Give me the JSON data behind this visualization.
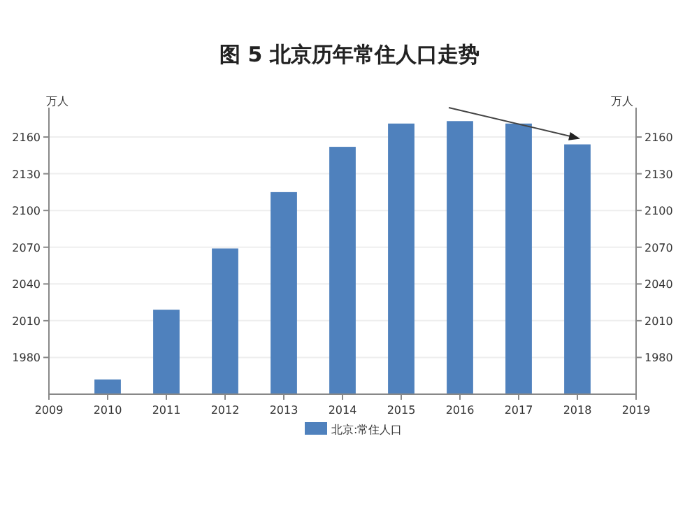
{
  "chart_data": {
    "type": "bar",
    "title": "图 5    北京历年常住人口走势",
    "ylabel": "万人",
    "y2label": "万人",
    "x": [
      2010,
      2011,
      2012,
      2013,
      2014,
      2015,
      2016,
      2017,
      2018
    ],
    "series": [
      {
        "name": "北京:常住人口",
        "color": "#4f81bd",
        "values": [
          1962,
          2019,
          2069,
          2115,
          2152,
          2171,
          2173,
          2171,
          2154
        ]
      }
    ],
    "xlim": [
      2009,
      2019
    ],
    "xticks": [
      2009,
      2010,
      2011,
      2012,
      2013,
      2014,
      2015,
      2016,
      2017,
      2018,
      2019
    ],
    "ylim": [
      1950,
      2184
    ],
    "yticks": [
      1980,
      2010,
      2040,
      2070,
      2100,
      2130,
      2160
    ],
    "y2lim": [
      1950,
      2184
    ],
    "y2ticks": [
      1980,
      2010,
      2040,
      2070,
      2100,
      2130,
      2160
    ],
    "grid": "y",
    "legend": "bottom"
  }
}
